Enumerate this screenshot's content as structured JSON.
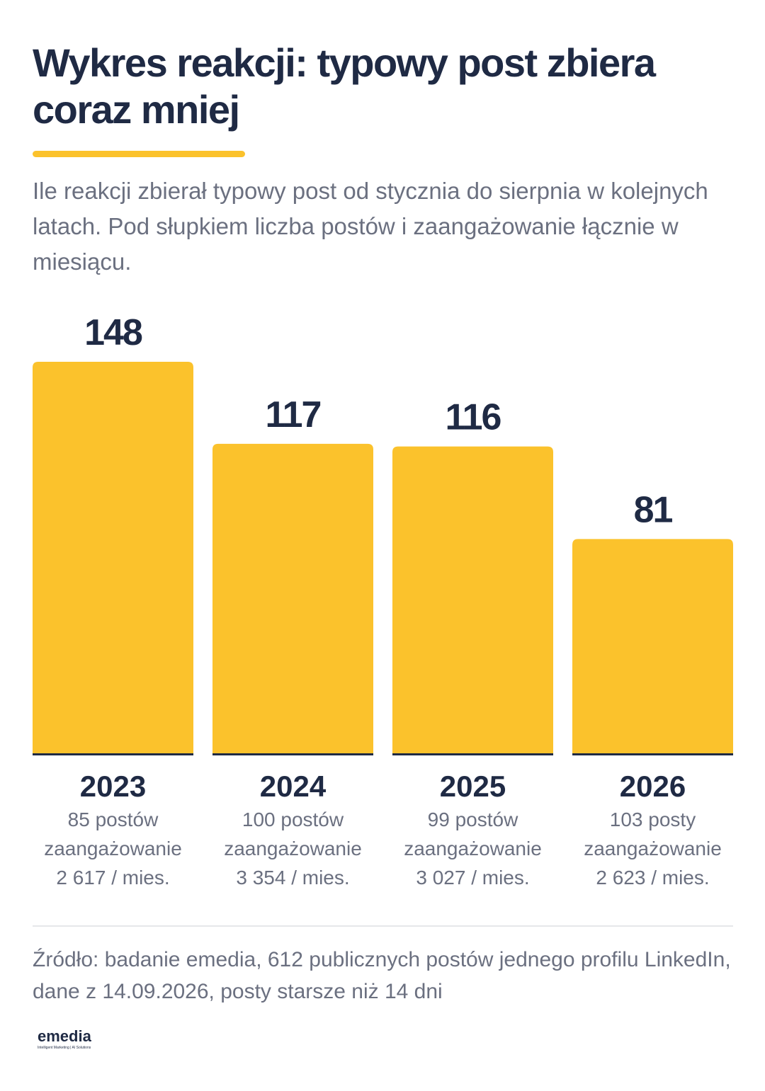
{
  "title": "Wykres reakcji: typowy post zbiera coraz mniej",
  "subtitle": "Ile reakcji zbierał typowy post od stycznia do sierpnia w kolejnych latach. Pod słupkiem liczba postów i zaangażowanie łącznie w miesiącu.",
  "colors": {
    "bar": "#fbc22c",
    "text": "#1f2a44",
    "muted": "#6b7080",
    "baseline": "#1f2a44"
  },
  "chart_data": {
    "type": "bar",
    "title": "Wykres reakcji: typowy post zbiera coraz mniej",
    "categories": [
      "2023",
      "2024",
      "2025",
      "2026"
    ],
    "values": [
      148,
      117,
      116,
      81
    ],
    "data_labels": [
      "148",
      "117",
      "116",
      "81"
    ],
    "ylim": [
      0,
      148
    ],
    "grid": false,
    "legend": "none",
    "column_notes": [
      {
        "posts": "85 postów",
        "engagement_label": "zaangażowanie",
        "engagement": "2 617 / mies."
      },
      {
        "posts": "100 postów",
        "engagement_label": "zaangażowanie",
        "engagement": "3 354 / mies."
      },
      {
        "posts": "99 postów",
        "engagement_label": "zaangażowanie",
        "engagement": "3 027 / mies."
      },
      {
        "posts": "103 posty",
        "engagement_label": "zaangażowanie",
        "engagement": "2 623 / mies."
      }
    ]
  },
  "source": "Źródło: badanie emedia, 612 publicznych postów jednego profilu LinkedIn, dane z 14.09.2026, posty starsze niż 14 dni",
  "logo": {
    "name": "emedia",
    "tagline": "Intelligent Marketing | AI Solutions"
  }
}
